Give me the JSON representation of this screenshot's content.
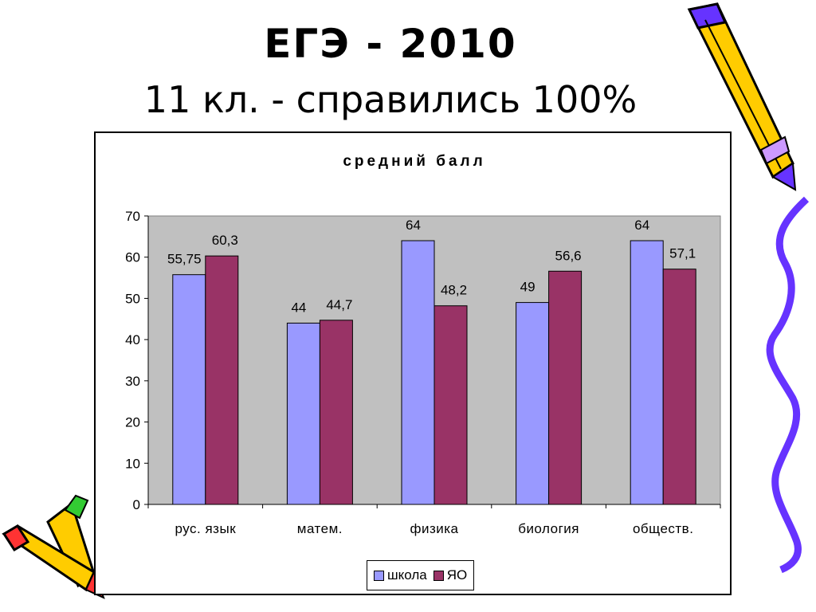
{
  "slide": {
    "title_line1": "ЕГЭ - 2010",
    "title_line2": "11 кл. - справились 100%"
  },
  "chart_data": {
    "type": "bar",
    "title": "средний балл",
    "categories": [
      "рус. язык",
      "матем.",
      "физика",
      "биология",
      "обществ."
    ],
    "series": [
      {
        "name": "школа",
        "values": [
          55.75,
          44,
          64,
          49,
          64
        ],
        "labels": [
          "55,75",
          "44",
          "64",
          "49",
          "64"
        ],
        "color": "#9999ff"
      },
      {
        "name": "ЯО",
        "values": [
          60.3,
          44.7,
          48.2,
          56.6,
          57.1
        ],
        "labels": [
          "60,3",
          "44,7",
          "48,2",
          "56,6",
          "57,1"
        ],
        "color": "#993366"
      }
    ],
    "ylim": [
      0,
      70
    ],
    "yticks": [
      0,
      10,
      20,
      30,
      40,
      50,
      60,
      70
    ],
    "plot_background": "#c0c0c0",
    "grid": false,
    "legend_position": "bottom"
  }
}
